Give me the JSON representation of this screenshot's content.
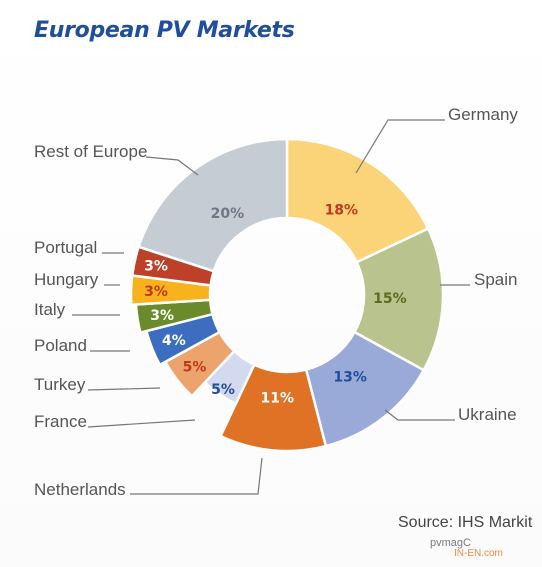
{
  "chart_data": {
    "type": "pie",
    "title": "European PV Markets",
    "categories": [
      "Germany",
      "Spain",
      "Ukraine",
      "Netherlands",
      "France",
      "Turkey",
      "Poland",
      "Italy",
      "Hungary",
      "Portugal",
      "Rest of Europe"
    ],
    "values": [
      18,
      15,
      13,
      11,
      5,
      5,
      4,
      3,
      3,
      3,
      20
    ],
    "value_labels": [
      "18%",
      "15%",
      "13%",
      "11%",
      "5%",
      "5%",
      "4%",
      "3%",
      "3%",
      "3%",
      "20%"
    ],
    "colors": [
      "#fbd47a",
      "#b9c38d",
      "#9aaad8",
      "#df7224",
      "#d3d9ef",
      "#eda36c",
      "#3d6dbf",
      "#6a8a2c",
      "#f7b21e",
      "#bd4128",
      "#c6ccd4"
    ],
    "label_colors": [
      "#bf3a1c",
      "#5a6b22",
      "#1f4e9c",
      "#ffffff",
      "#1f4e9c",
      "#bf3a1c",
      "#ffffff",
      "#ffffff",
      "#bf3a1c",
      "#ffffff",
      "#6d7785"
    ],
    "style": "donut",
    "legend": "none"
  },
  "source": "Source: IHS Markit",
  "watermark": {
    "magazine": "pvmagC",
    "site": "IN-EN.com"
  }
}
